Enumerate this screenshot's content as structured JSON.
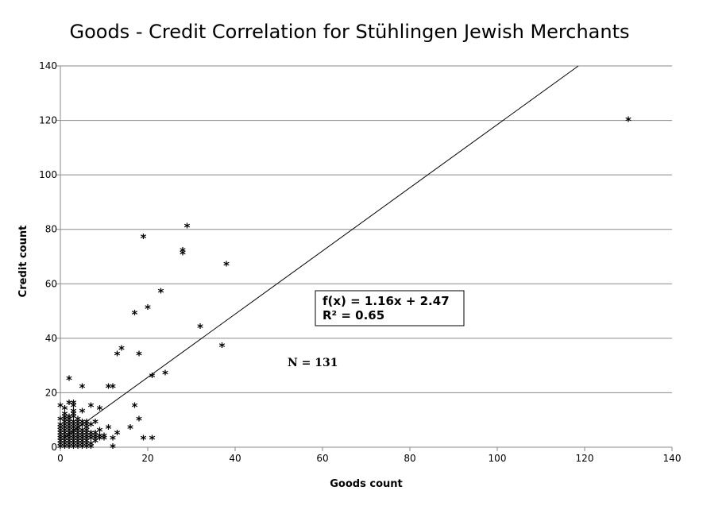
{
  "chart_data": {
    "type": "scatter",
    "title": "Goods - Credit Correlation for Stühlingen Jewish Merchants",
    "xlabel": "Goods count",
    "ylabel": "Credit count",
    "xlim": [
      0,
      140
    ],
    "ylim": [
      0,
      140
    ],
    "x_ticks": [
      "0",
      "20",
      "40",
      "60",
      "80",
      "100",
      "120",
      "140"
    ],
    "y_ticks": [
      "0",
      "20",
      "40",
      "60",
      "80",
      "100",
      "120",
      "140"
    ],
    "grid": "horizontal",
    "marker": "*",
    "trendline": {
      "slope": 1.16,
      "intercept": 2.47,
      "equation": "f(x) = 1.16x + 2.47",
      "r_squared": "R² = 0.65"
    },
    "annotation": "N = 131",
    "points": [
      [
        130,
        120
      ],
      [
        29,
        81
      ],
      [
        19,
        77
      ],
      [
        28,
        72
      ],
      [
        28,
        71
      ],
      [
        38,
        67
      ],
      [
        23,
        57
      ],
      [
        20,
        51
      ],
      [
        17,
        49
      ],
      [
        32,
        44
      ],
      [
        37,
        37
      ],
      [
        14,
        36
      ],
      [
        13,
        34
      ],
      [
        18,
        34
      ],
      [
        24,
        27
      ],
      [
        21,
        26
      ],
      [
        2,
        25
      ],
      [
        5,
        22
      ],
      [
        11,
        22
      ],
      [
        12,
        22
      ],
      [
        2,
        16
      ],
      [
        3,
        16
      ],
      [
        0,
        15
      ],
      [
        1,
        14
      ],
      [
        3,
        15
      ],
      [
        7,
        15
      ],
      [
        17,
        15
      ],
      [
        9,
        14
      ],
      [
        5,
        13
      ],
      [
        1,
        11
      ],
      [
        3,
        11
      ],
      [
        0,
        10
      ],
      [
        18,
        10
      ],
      [
        8,
        9
      ],
      [
        2,
        8
      ],
      [
        7,
        8
      ],
      [
        1,
        7
      ],
      [
        3,
        7
      ],
      [
        4,
        7
      ],
      [
        6,
        7
      ],
      [
        11,
        7
      ],
      [
        16,
        7
      ],
      [
        0,
        6
      ],
      [
        2,
        6
      ],
      [
        3,
        6
      ],
      [
        5,
        6
      ],
      [
        9,
        6
      ],
      [
        1,
        5
      ],
      [
        4,
        5
      ],
      [
        7,
        5
      ],
      [
        13,
        5
      ],
      [
        0,
        4
      ],
      [
        2,
        4
      ],
      [
        3,
        4
      ],
      [
        5,
        4
      ],
      [
        6,
        4
      ],
      [
        8,
        4
      ],
      [
        10,
        4
      ],
      [
        1,
        3
      ],
      [
        3,
        3
      ],
      [
        4,
        3
      ],
      [
        6,
        3
      ],
      [
        7,
        3
      ],
      [
        9,
        3
      ],
      [
        12,
        3
      ],
      [
        19,
        3
      ],
      [
        21,
        3
      ],
      [
        0,
        2
      ],
      [
        2,
        2
      ],
      [
        5,
        2
      ],
      [
        8,
        2
      ],
      [
        1,
        1
      ],
      [
        2,
        1
      ],
      [
        4,
        1
      ],
      [
        6,
        1
      ],
      [
        0,
        0
      ],
      [
        1,
        0
      ],
      [
        3,
        0
      ],
      [
        5,
        0
      ],
      [
        6,
        0
      ],
      [
        7,
        0
      ],
      [
        12,
        0
      ],
      [
        0,
        1
      ],
      [
        1,
        2
      ],
      [
        2,
        0
      ],
      [
        2,
        3
      ],
      [
        3,
        2
      ],
      [
        4,
        0
      ],
      [
        4,
        2
      ],
      [
        5,
        1
      ],
      [
        6,
        2
      ],
      [
        7,
        1
      ],
      [
        8,
        3
      ],
      [
        1,
        4
      ],
      [
        2,
        5
      ],
      [
        3,
        5
      ],
      [
        0,
        3
      ],
      [
        1,
        6
      ],
      [
        4,
        4
      ],
      [
        5,
        3
      ],
      [
        3,
        1
      ],
      [
        2,
        7
      ],
      [
        6,
        5
      ],
      [
        0,
        5
      ],
      [
        1,
        8
      ],
      [
        4,
        6
      ],
      [
        3,
        8
      ],
      [
        2,
        9
      ],
      [
        5,
        5
      ],
      [
        0,
        7
      ],
      [
        1,
        9
      ],
      [
        3,
        9
      ],
      [
        4,
        8
      ],
      [
        6,
        6
      ],
      [
        7,
        4
      ],
      [
        8,
        5
      ],
      [
        9,
        4
      ],
      [
        10,
        3
      ],
      [
        2,
        10
      ],
      [
        3,
        12
      ],
      [
        1,
        12
      ],
      [
        4,
        9
      ],
      [
        5,
        8
      ],
      [
        6,
        8
      ],
      [
        0,
        8
      ],
      [
        1,
        10
      ],
      [
        2,
        11
      ],
      [
        3,
        13
      ],
      [
        4,
        10
      ],
      [
        5,
        9
      ],
      [
        6,
        9
      ]
    ]
  }
}
